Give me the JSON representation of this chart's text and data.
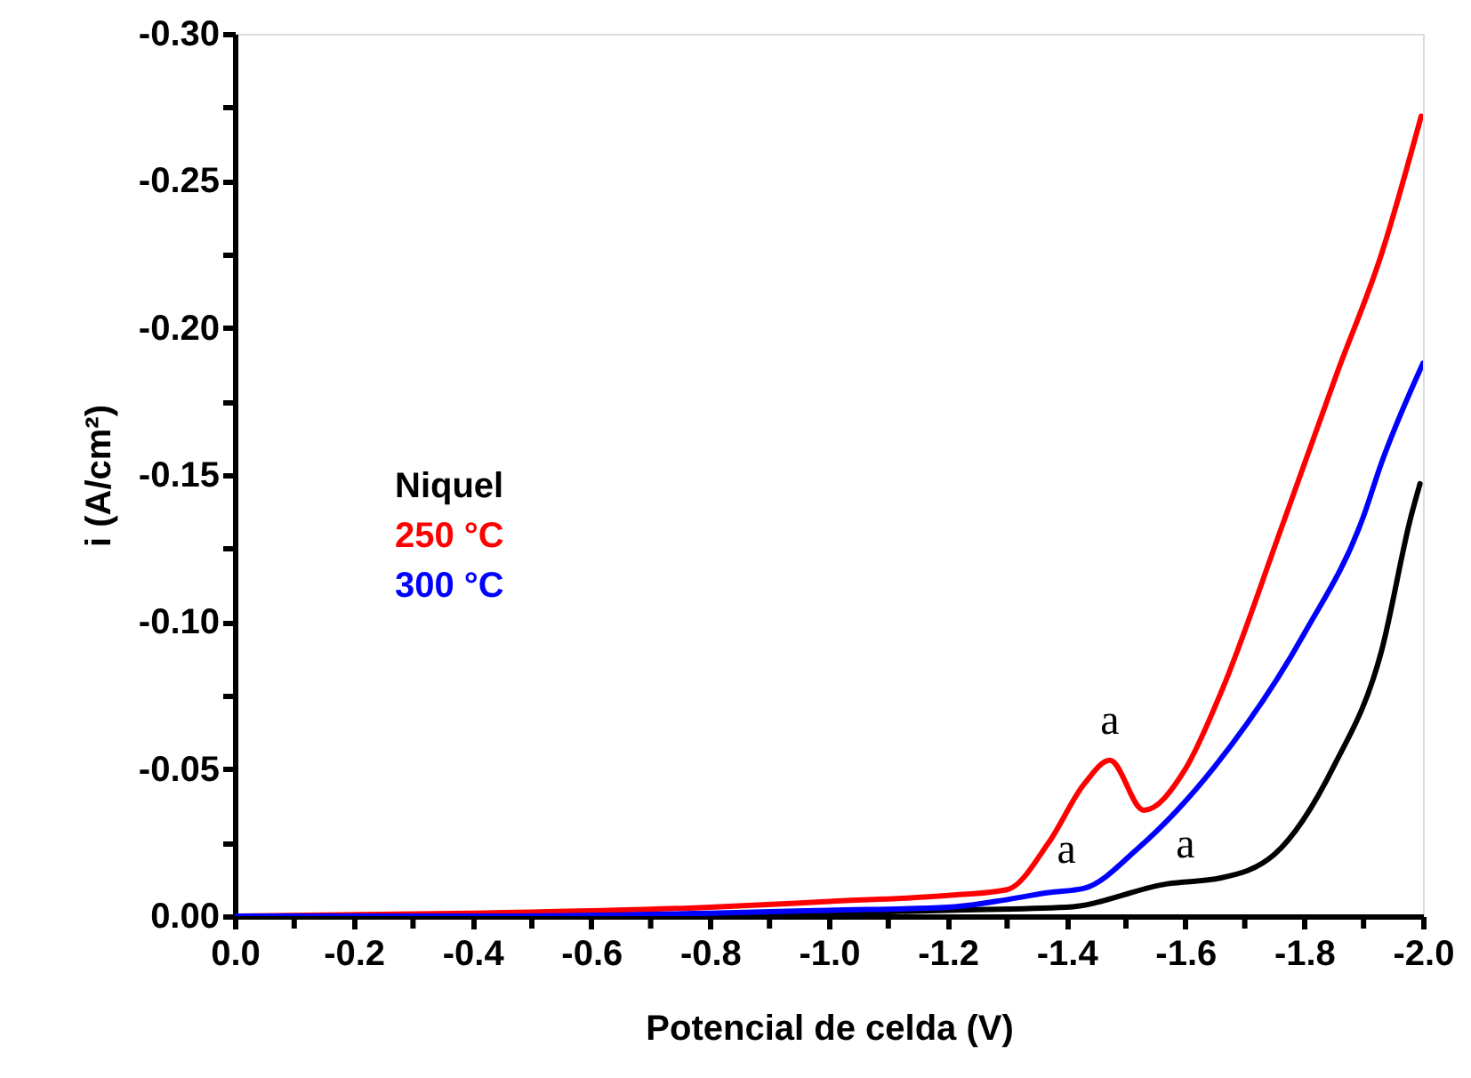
{
  "chart_data": {
    "type": "line",
    "xlabel": "Potencial de celda (V)",
    "ylabel": "i (A/cm²)",
    "xlim": [
      0,
      -2.0
    ],
    "ylim": [
      0,
      -0.3
    ],
    "xticks": [
      {
        "value": 0,
        "label": "0.0"
      },
      {
        "value": -0.1,
        "label": null
      },
      {
        "value": -0.2,
        "label": "-0.2"
      },
      {
        "value": -0.3,
        "label": null
      },
      {
        "value": -0.4,
        "label": "-0.4"
      },
      {
        "value": -0.5,
        "label": null
      },
      {
        "value": -0.6,
        "label": "-0.6"
      },
      {
        "value": -0.7,
        "label": null
      },
      {
        "value": -0.8,
        "label": "-0.8"
      },
      {
        "value": -0.9,
        "label": null
      },
      {
        "value": -1.0,
        "label": "-1.0"
      },
      {
        "value": -1.1,
        "label": null
      },
      {
        "value": -1.2,
        "label": "-1.2"
      },
      {
        "value": -1.3,
        "label": null
      },
      {
        "value": -1.4,
        "label": "-1.4"
      },
      {
        "value": -1.5,
        "label": null
      },
      {
        "value": -1.6,
        "label": "-1.6"
      },
      {
        "value": -1.7,
        "label": null
      },
      {
        "value": -1.8,
        "label": "-1.8"
      },
      {
        "value": -1.9,
        "label": null
      },
      {
        "value": -2.0,
        "label": "-2.0"
      }
    ],
    "yticks": [
      {
        "value": 0,
        "label": "0.00"
      },
      {
        "value": -0.025,
        "label": null
      },
      {
        "value": -0.05,
        "label": "-0.05"
      },
      {
        "value": -0.075,
        "label": null
      },
      {
        "value": -0.1,
        "label": "-0.10"
      },
      {
        "value": -0.125,
        "label": null
      },
      {
        "value": -0.15,
        "label": "-0.15"
      },
      {
        "value": -0.175,
        "label": null
      },
      {
        "value": -0.2,
        "label": "-0.20"
      },
      {
        "value": -0.225,
        "label": null
      },
      {
        "value": -0.25,
        "label": "-0.25"
      },
      {
        "value": -0.275,
        "label": null
      },
      {
        "value": -0.3,
        "label": "-0.30"
      }
    ],
    "legend": "left",
    "grid": false,
    "marker": "none",
    "line_style": "solid",
    "series": [
      {
        "name": "Niquel",
        "color": "#000000",
        "x": [
          0,
          -0.4,
          -0.8,
          -1.0,
          -1.2,
          -1.4,
          -1.57,
          -1.66,
          -1.75,
          -1.85,
          -1.93,
          -1.98,
          -1.995
        ],
        "values": [
          0,
          0.0,
          -0.0005,
          -0.001,
          -0.002,
          -0.003,
          -0.011,
          -0.013,
          -0.021,
          -0.051,
          -0.09,
          -0.136,
          -0.147
        ]
      },
      {
        "name": "250 °C",
        "color": "#ff0000",
        "x": [
          0,
          -0.4,
          -0.8,
          -1.0,
          -1.2,
          -1.3,
          -1.37,
          -1.43,
          -1.473,
          -1.53,
          -1.6,
          -1.66,
          -1.76,
          -1.856,
          -1.93,
          -1.997
        ],
        "values": [
          0,
          -0.001,
          -0.003,
          -0.005,
          -0.007,
          -0.009,
          -0.025,
          -0.045,
          -0.053,
          -0.036,
          -0.05,
          -0.076,
          -0.131,
          -0.185,
          -0.225,
          -0.272
        ]
      },
      {
        "name": "300 °C",
        "color": "#0000ff",
        "x": [
          0,
          -0.4,
          -0.8,
          -1.0,
          -1.2,
          -1.28,
          -1.37,
          -1.43,
          -1.52,
          -1.65,
          -1.8,
          -1.9,
          -1.93,
          -2.0
        ],
        "values": [
          0,
          0.0,
          -0.001,
          -0.002,
          -0.003,
          -0.005,
          -0.008,
          -0.0095,
          -0.023,
          -0.051,
          -0.096,
          -0.136,
          -0.154,
          -0.188
        ]
      }
    ],
    "annotations": [
      {
        "text": "a",
        "x": -1.473,
        "y": -0.053
      },
      {
        "text": "a",
        "x": -1.4,
        "y": -0.009
      },
      {
        "text": "a",
        "x": -1.6,
        "y": -0.011
      }
    ]
  }
}
